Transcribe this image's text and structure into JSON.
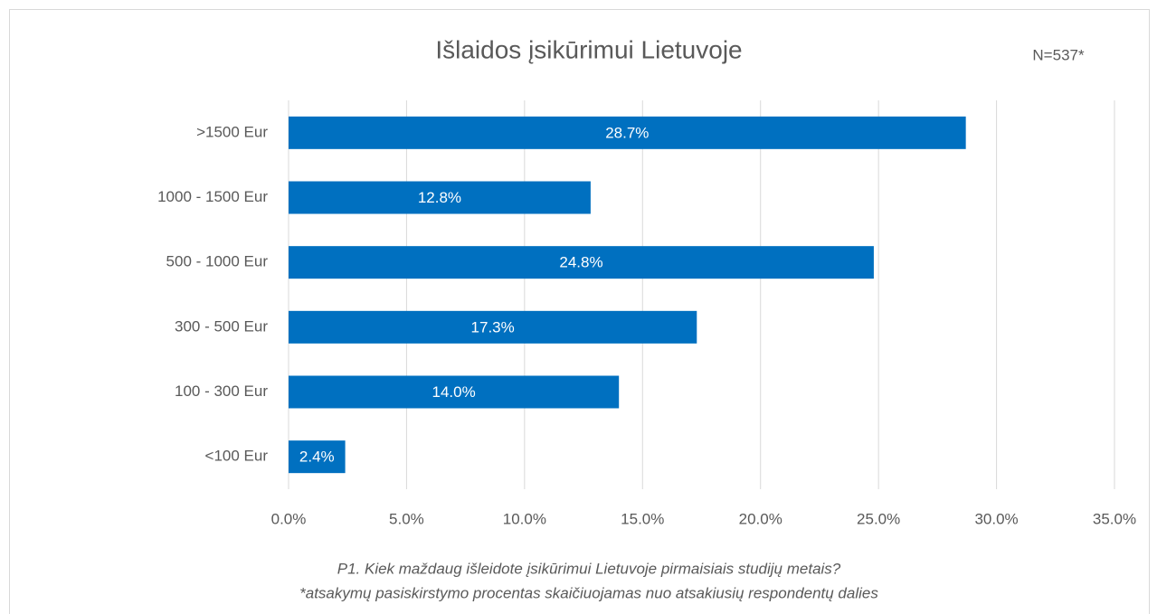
{
  "chart_data": {
    "type": "bar",
    "orientation": "horizontal",
    "title": "Išlaidos įsikūrimui Lietuvoje",
    "annotation": "N=537*",
    "footnotes": [
      "P1. Kiek maždaug išleidote įsikūrimui Lietuvoje pirmaisiais studijų metais?",
      "*atsakymų pasiskirstymo procentas skaičiuojamas nuo atsakiusių respondentų dalies"
    ],
    "categories": [
      ">1500 Eur",
      "1000 - 1500 Eur",
      "500 - 1000 Eur",
      "300 - 500 Eur",
      "100 - 300 Eur",
      "<100 Eur"
    ],
    "values": [
      28.7,
      12.8,
      24.8,
      17.3,
      14.0,
      2.4
    ],
    "value_labels": [
      "28.7%",
      "12.8%",
      "24.8%",
      "17.3%",
      "14.0%",
      "2.4%"
    ],
    "color": "#0070c0",
    "xlim": [
      0,
      35
    ],
    "xticks": [
      {
        "value": 0,
        "label": "0.0%"
      },
      {
        "value": 5,
        "label": "5.0%"
      },
      {
        "value": 10,
        "label": "10.0%"
      },
      {
        "value": 15,
        "label": "15.0%"
      },
      {
        "value": 20,
        "label": "20.0%"
      },
      {
        "value": 25,
        "label": "25.0%"
      },
      {
        "value": 30,
        "label": "30.0%"
      },
      {
        "value": 35,
        "label": "35.0%"
      }
    ],
    "grid": true
  }
}
